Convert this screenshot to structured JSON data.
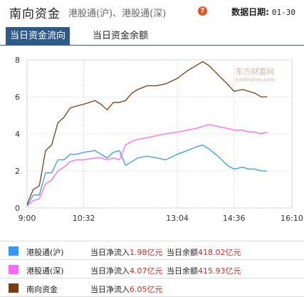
{
  "header": {
    "title": "南向资金",
    "subtitle": "港股通(沪)、港股通(深)",
    "help_icon": "question-icon",
    "date_label": "数据日期:",
    "date_value": "01-30"
  },
  "tabs": [
    {
      "label": "当日资金流向",
      "active": true
    },
    {
      "label": "当日资金余额",
      "active": false
    }
  ],
  "watermark": "东方财富网",
  "watermark_sub": "eastmoney.com",
  "legend": [
    {
      "name": "港股通(沪)",
      "flow_label": "当日净流入",
      "flow_value": "1.98亿元",
      "balance_label": "当日余额",
      "balance_value": "418.02亿元",
      "color": "#3399ff"
    },
    {
      "name": "港股通(深)",
      "flow_label": "当日净流入",
      "flow_value": "4.07亿元",
      "balance_label": "当日余额",
      "balance_value": "415.93亿元",
      "color": "#ff66ff"
    },
    {
      "name": "南向资金",
      "flow_label": "当日净流入",
      "flow_value": "6.05亿元",
      "balance_label": "",
      "balance_value": "",
      "color": "#7a3e12"
    }
  ],
  "chart_data": {
    "type": "line",
    "title": "",
    "xlabel": "",
    "ylabel": "",
    "x_ticks": [
      "9:00",
      "10:32",
      "13:04",
      "14:36",
      "16:10"
    ],
    "y_ticks": [
      0,
      2,
      4,
      6,
      8
    ],
    "ylim": [
      0,
      8
    ],
    "grid": true,
    "series": [
      {
        "name": "港股通(沪)",
        "color": "#3399ff",
        "points": [
          [
            "9:00",
            0.1
          ],
          [
            "9:10",
            0.7
          ],
          [
            "9:20",
            0.7
          ],
          [
            "9:30",
            1.9
          ],
          [
            "9:40",
            1.9
          ],
          [
            "9:50",
            2.6
          ],
          [
            "10:00",
            2.6
          ],
          [
            "10:10",
            2.9
          ],
          [
            "10:20",
            2.9
          ],
          [
            "10:32",
            3.0
          ],
          [
            "10:50",
            3.1
          ],
          [
            "11:00",
            2.9
          ],
          [
            "11:10",
            2.7
          ],
          [
            "11:20",
            3.0
          ],
          [
            "11:30",
            3.1
          ],
          [
            "11:40",
            2.3
          ],
          [
            "11:50",
            2.5
          ],
          [
            "12:00",
            2.7
          ],
          [
            "12:15",
            2.8
          ],
          [
            "12:30",
            2.7
          ],
          [
            "12:45",
            2.6
          ],
          [
            "13:04",
            2.9
          ],
          [
            "13:20",
            3.1
          ],
          [
            "13:35",
            3.3
          ],
          [
            "13:45",
            3.4
          ],
          [
            "13:55",
            3.2
          ],
          [
            "14:10",
            2.8
          ],
          [
            "14:25",
            2.3
          ],
          [
            "14:36",
            2.1
          ],
          [
            "14:50",
            2.2
          ],
          [
            "15:00",
            2.1
          ],
          [
            "15:10",
            2.1
          ],
          [
            "15:20",
            2.0
          ],
          [
            "15:30",
            2.0
          ]
        ]
      },
      {
        "name": "港股通(深)",
        "color": "#ff66ff",
        "points": [
          [
            "9:00",
            0.1
          ],
          [
            "9:10",
            0.4
          ],
          [
            "9:20",
            0.5
          ],
          [
            "9:30",
            1.3
          ],
          [
            "9:40",
            1.5
          ],
          [
            "9:50",
            2.0
          ],
          [
            "10:00",
            2.2
          ],
          [
            "10:10",
            2.5
          ],
          [
            "10:20",
            2.6
          ],
          [
            "10:32",
            2.6
          ],
          [
            "10:50",
            2.7
          ],
          [
            "11:00",
            2.7
          ],
          [
            "11:10",
            2.6
          ],
          [
            "11:20",
            2.7
          ],
          [
            "11:30",
            2.6
          ],
          [
            "11:40",
            3.4
          ],
          [
            "11:50",
            3.6
          ],
          [
            "12:00",
            3.7
          ],
          [
            "12:15",
            3.8
          ],
          [
            "12:30",
            3.9
          ],
          [
            "12:45",
            4.0
          ],
          [
            "13:04",
            4.1
          ],
          [
            "13:20",
            4.2
          ],
          [
            "13:35",
            4.3
          ],
          [
            "13:45",
            4.4
          ],
          [
            "13:55",
            4.5
          ],
          [
            "14:10",
            4.4
          ],
          [
            "14:25",
            4.3
          ],
          [
            "14:36",
            4.2
          ],
          [
            "14:50",
            4.2
          ],
          [
            "15:00",
            4.1
          ],
          [
            "15:10",
            4.1
          ],
          [
            "15:20",
            4.0
          ],
          [
            "15:30",
            4.1
          ]
        ]
      },
      {
        "name": "南向资金",
        "color": "#7a3e12",
        "points": [
          [
            "9:00",
            0.2
          ],
          [
            "9:10",
            1.0
          ],
          [
            "9:20",
            1.2
          ],
          [
            "9:30",
            3.1
          ],
          [
            "9:40",
            3.4
          ],
          [
            "9:50",
            4.6
          ],
          [
            "10:00",
            4.9
          ],
          [
            "10:10",
            5.4
          ],
          [
            "10:20",
            5.5
          ],
          [
            "10:32",
            5.6
          ],
          [
            "10:50",
            5.8
          ],
          [
            "11:00",
            5.6
          ],
          [
            "11:10",
            5.3
          ],
          [
            "11:20",
            5.7
          ],
          [
            "11:30",
            5.7
          ],
          [
            "11:40",
            5.8
          ],
          [
            "11:50",
            6.2
          ],
          [
            "12:00",
            6.4
          ],
          [
            "12:15",
            6.6
          ],
          [
            "12:30",
            6.6
          ],
          [
            "12:45",
            6.7
          ],
          [
            "13:04",
            7.0
          ],
          [
            "13:20",
            7.4
          ],
          [
            "13:35",
            7.7
          ],
          [
            "13:45",
            7.9
          ],
          [
            "13:55",
            7.7
          ],
          [
            "14:10",
            7.2
          ],
          [
            "14:25",
            6.7
          ],
          [
            "14:36",
            6.3
          ],
          [
            "14:50",
            6.4
          ],
          [
            "15:00",
            6.3
          ],
          [
            "15:10",
            6.2
          ],
          [
            "15:20",
            6.0
          ],
          [
            "15:30",
            6.0
          ]
        ]
      }
    ]
  }
}
